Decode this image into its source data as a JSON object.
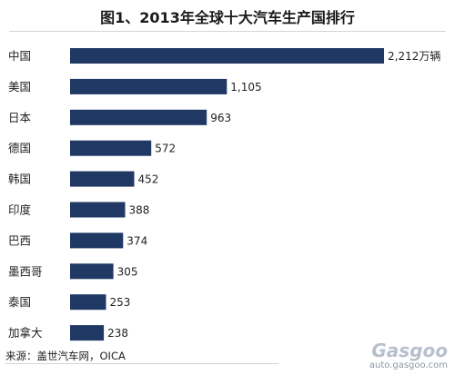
{
  "chart_data": {
    "type": "bar",
    "orientation": "horizontal",
    "title": "图1、2013年全球十大汽车生产国排行",
    "categories": [
      "中国",
      "美国",
      "日本",
      "德国",
      "韩国",
      "印度",
      "巴西",
      "墨西哥",
      "泰国",
      "加拿大"
    ],
    "values": [
      2212,
      1105,
      963,
      572,
      452,
      388,
      374,
      305,
      253,
      238
    ],
    "value_labels": [
      "2,212万辆",
      "1,105",
      "963",
      "572",
      "452",
      "388",
      "374",
      "305",
      "253",
      "238"
    ],
    "bar_color": "#1f3864",
    "xlim": [
      0,
      2212
    ],
    "grid": false,
    "legend": "none"
  },
  "source": "来源：盖世汽车网，OICA",
  "watermark": {
    "brand": "Gasgoo",
    "url": "auto.gasgoo.com"
  }
}
